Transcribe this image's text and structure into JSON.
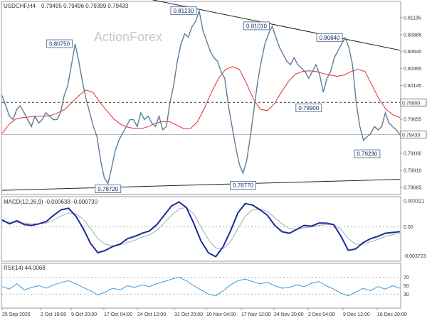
{
  "header": {
    "symbol": "USDCHF,H4",
    "ohlc": "0.79495 0.79496 0.79399 0.79433"
  },
  "watermark": "ActionForex",
  "colors": {
    "price": "#5b7d99",
    "ma": "#e03030",
    "macd": "#1a2b99",
    "signal": "#aaaaaa",
    "rsi": "#3a9ad9",
    "trend": "#222222",
    "label_border": "#5b7d99"
  },
  "chart_data": [
    {
      "type": "line",
      "panel": "price",
      "ylim": [
        0.7858,
        0.8135
      ],
      "y_ticks": [
        "0.81135",
        "0.80885",
        "0.80640",
        "0.80395",
        "0.80145",
        "0.79900",
        "0.79655",
        "0.79433",
        "0.79160",
        "0.78910",
        "0.78665"
      ],
      "y_tick_values": [
        0.81135,
        0.80885,
        0.8064,
        0.80395,
        0.80145,
        0.799,
        0.79655,
        0.79433,
        0.7916,
        0.7891,
        0.78665
      ],
      "x_labels": [
        "25 Sep 2025",
        "2 Oct 16:00",
        "9 Oct 20:00",
        "17 Oct 04:00",
        "24 Oct 12:00",
        "31 Oct 20:00",
        "10 Nov 04:00",
        "17 Nov 12:00",
        "24 Nov 20:00",
        "2 Dec 04:00",
        "9 Dec 12:00",
        "16 Dec 20:00"
      ],
      "series": [
        {
          "role": "price",
          "values": [
            0.8,
            0.7985,
            0.797,
            0.7965,
            0.798,
            0.7985,
            0.7975,
            0.7965,
            0.7955,
            0.797,
            0.796,
            0.7965,
            0.7975,
            0.797,
            0.7965,
            0.7965,
            0.7975,
            0.8,
            0.8015,
            0.8045,
            0.8075,
            0.805,
            0.802,
            0.7995,
            0.7975,
            0.7955,
            0.794,
            0.7905,
            0.788,
            0.7872,
            0.7895,
            0.792,
            0.7935,
            0.7945,
            0.7955,
            0.7965,
            0.7965,
            0.7955,
            0.7975,
            0.7965,
            0.797,
            0.796,
            0.7955,
            0.797,
            0.795,
            0.7955,
            0.799,
            0.8015,
            0.805,
            0.8075,
            0.809,
            0.8085,
            0.81,
            0.8108,
            0.8123,
            0.8095,
            0.808,
            0.8065,
            0.8055,
            0.805,
            0.8035,
            0.8025,
            0.7985,
            0.7955,
            0.7925,
            0.79,
            0.7887,
            0.7905,
            0.794,
            0.798,
            0.802,
            0.805,
            0.8075,
            0.809,
            0.8101,
            0.8085,
            0.807,
            0.806,
            0.805,
            0.8045,
            0.8055,
            0.8045,
            0.804,
            0.8035,
            0.8025,
            0.8035,
            0.8045,
            0.803,
            0.8005,
            0.8025,
            0.8035,
            0.8055,
            0.8065,
            0.8075,
            0.8084,
            0.807,
            0.8045,
            0.799,
            0.7955,
            0.7935,
            0.794,
            0.7945,
            0.7955,
            0.795,
            0.7955,
            0.7975,
            0.796,
            0.7955,
            0.795,
            0.7943
          ]
        },
        {
          "role": "moving_average",
          "values": [
            0.7945,
            0.7958,
            0.7966,
            0.7968,
            0.7969,
            0.797,
            0.797,
            0.7971,
            0.7975,
            0.798,
            0.799,
            0.8,
            0.8008,
            0.8005,
            0.799,
            0.7978,
            0.7966,
            0.7958,
            0.7954,
            0.7952,
            0.7952,
            0.7955,
            0.796,
            0.7962,
            0.7962,
            0.7957,
            0.7952,
            0.7952,
            0.7962,
            0.7982,
            0.8005,
            0.8025,
            0.8038,
            0.8042,
            0.8038,
            0.8018,
            0.7995,
            0.798,
            0.7978,
            0.7988,
            0.8005,
            0.802,
            0.8031,
            0.8035,
            0.8036,
            0.8035,
            0.8032,
            0.803,
            0.8028,
            0.803,
            0.8035,
            0.8038,
            0.8035,
            0.8015,
            0.7995,
            0.798,
            0.7972,
            0.7968
          ]
        }
      ],
      "annotations": [
        {
          "text": "0.80750",
          "x_index": 20,
          "y": 0.8075,
          "side": "left"
        },
        {
          "text": "0.78720",
          "x_index": 29,
          "y": 0.7872,
          "side": "below"
        },
        {
          "text": "0.81230",
          "x_index": 54,
          "y": 0.8123,
          "side": "left"
        },
        {
          "text": "0.78770",
          "x_index": 66,
          "y": 0.7877,
          "side": "below"
        },
        {
          "text": "0.81010",
          "x_index": 74,
          "y": 0.8101,
          "side": "left"
        },
        {
          "text": "0.80840",
          "x_index": 94,
          "y": 0.8084,
          "side": "left"
        },
        {
          "text": "0.79900",
          "x_index": 84,
          "y": 0.799,
          "side": "below"
        },
        {
          "text": "0.79230",
          "x_index": 100,
          "y": 0.7923,
          "side": "below"
        }
      ],
      "marked_levels": [
        {
          "value": 0.799,
          "label": "0.79900",
          "style": "dashed"
        },
        {
          "value": 0.79433,
          "label": "0.79433",
          "style": "solid"
        }
      ],
      "trendlines": [
        {
          "from": [
            0.0,
            0.7862
          ],
          "to": [
            1.0,
            0.7878
          ]
        },
        {
          "from": [
            0.33,
            0.8145
          ],
          "to": [
            1.0,
            0.8066
          ]
        }
      ]
    },
    {
      "type": "line",
      "panel": "macd",
      "title": "MACD(12,26,9) -0.000638 -0.000730",
      "ylim": [
        -0.0042,
        0.0037
      ],
      "y_ticks": [
        "0.003321",
        "0.00",
        "-0.003723"
      ],
      "y_tick_values": [
        0.003321,
        0.0,
        -0.003723
      ],
      "series": [
        {
          "role": "macd",
          "values": [
            0.0009,
            0.0004,
            0.0008,
            0.0003,
            0.0002,
            0.0004,
            0.0007,
            0.0015,
            0.0022,
            0.0024,
            0.0014,
            -0.0002,
            -0.0021,
            -0.0033,
            -0.003,
            -0.0025,
            -0.0022,
            -0.0015,
            -0.0012,
            -0.0008,
            -0.0005,
            0.0003,
            0.0015,
            0.0027,
            0.0032,
            0.0025,
            0.0005,
            -0.0018,
            -0.0033,
            -0.0038,
            -0.0025,
            -0.0005,
            0.0018,
            0.003,
            0.0028,
            0.0022,
            0.0015,
            0.0002,
            -0.0006,
            -0.0008,
            -0.0003,
            0.0002,
            0.0001,
            0.0005,
            0.0005,
            0.0003,
            -0.0012,
            -0.003,
            -0.0028,
            -0.002,
            -0.0015,
            -0.0012,
            -0.0008,
            -0.0007,
            -0.0006
          ]
        },
        {
          "role": "signal",
          "values": [
            0.0007,
            0.0006,
            0.0006,
            0.0005,
            0.0004,
            0.0004,
            0.0005,
            0.0009,
            0.0014,
            0.0018,
            0.0017,
            0.001,
            -0.0002,
            -0.0015,
            -0.0022,
            -0.0024,
            -0.0023,
            -0.002,
            -0.0017,
            -0.0013,
            -0.001,
            -0.0004,
            0.0005,
            0.0015,
            0.0023,
            0.0025,
            0.0017,
            0.0,
            -0.0016,
            -0.0027,
            -0.0028,
            -0.0019,
            -0.0002,
            0.0014,
            0.0022,
            0.0023,
            0.002,
            0.0012,
            0.0004,
            -0.0002,
            -0.0003,
            -0.0001,
            0.0,
            0.0002,
            0.0003,
            0.0003,
            -0.0003,
            -0.0015,
            -0.0022,
            -0.0022,
            -0.0019,
            -0.0016,
            -0.0012,
            -0.001,
            -0.0008
          ]
        }
      ]
    },
    {
      "type": "line",
      "panel": "rsi",
      "title": "RSI(14) 44.0068",
      "ylim": [
        0,
        100
      ],
      "y_ticks": [
        "70",
        "50",
        "30"
      ],
      "y_tick_values": [
        70,
        50,
        30
      ],
      "series": [
        {
          "role": "rsi",
          "values": [
            48,
            42,
            55,
            40,
            46,
            50,
            44,
            52,
            58,
            62,
            55,
            46,
            38,
            28,
            35,
            44,
            40,
            50,
            46,
            52,
            48,
            55,
            60,
            66,
            70,
            62,
            50,
            40,
            30,
            26,
            38,
            52,
            62,
            66,
            60,
            55,
            58,
            50,
            44,
            46,
            52,
            48,
            56,
            60,
            50,
            42,
            32,
            26,
            35,
            44,
            38,
            48,
            42,
            50,
            44
          ]
        }
      ]
    }
  ]
}
